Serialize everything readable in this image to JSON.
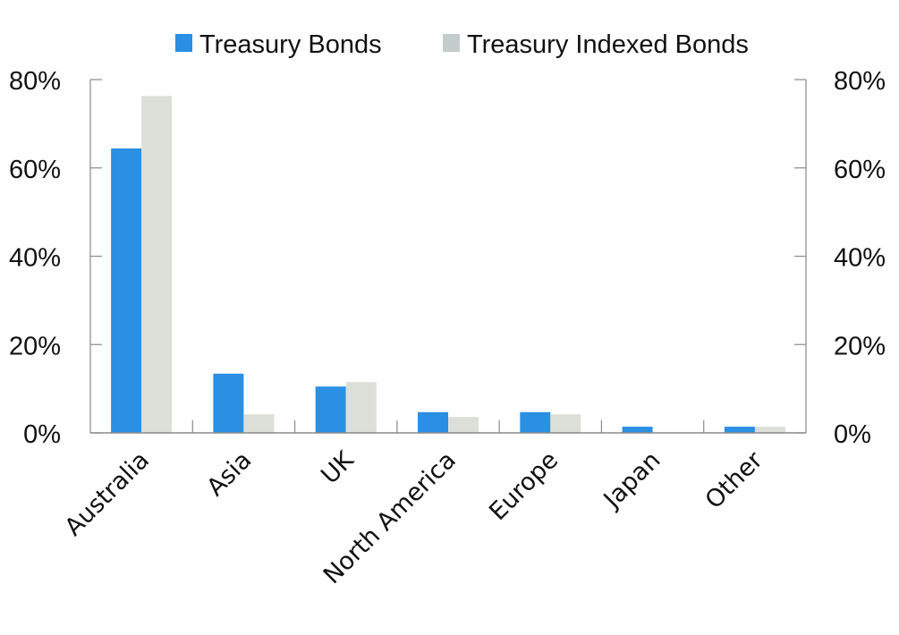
{
  "chart_data": {
    "type": "bar",
    "title": "",
    "xlabel": "",
    "ylabel": "",
    "categories": [
      "Australia",
      "Asia",
      "UK",
      "North America",
      "Europe",
      "Japan",
      "Other"
    ],
    "series": [
      {
        "name": "Treasury Bonds",
        "color": "#2b8fe3",
        "legend_color": "#2b8fe3",
        "values": [
          64.4,
          13.4,
          10.5,
          4.7,
          4.7,
          1.4,
          1.4
        ]
      },
      {
        "name": "Treasury Indexed Bonds",
        "color": "#dcdfd7",
        "legend_color": "#c3cccb",
        "values": [
          76.3,
          4.2,
          11.5,
          3.6,
          4.2,
          0.0,
          1.4
        ]
      }
    ],
    "ylim": [
      0,
      80
    ],
    "yticks": [
      0,
      20,
      40,
      60,
      80
    ],
    "ytick_labels": [
      "0%",
      "20%",
      "40%",
      "60%",
      "80%"
    ],
    "secondary_y_axis": {
      "ylim": [
        0,
        80
      ],
      "ytick_labels": [
        "0%",
        "20%",
        "40%",
        "60%",
        "80%"
      ]
    },
    "grid": false,
    "legend_position": "top",
    "axis_color": "#8a8a8a"
  }
}
